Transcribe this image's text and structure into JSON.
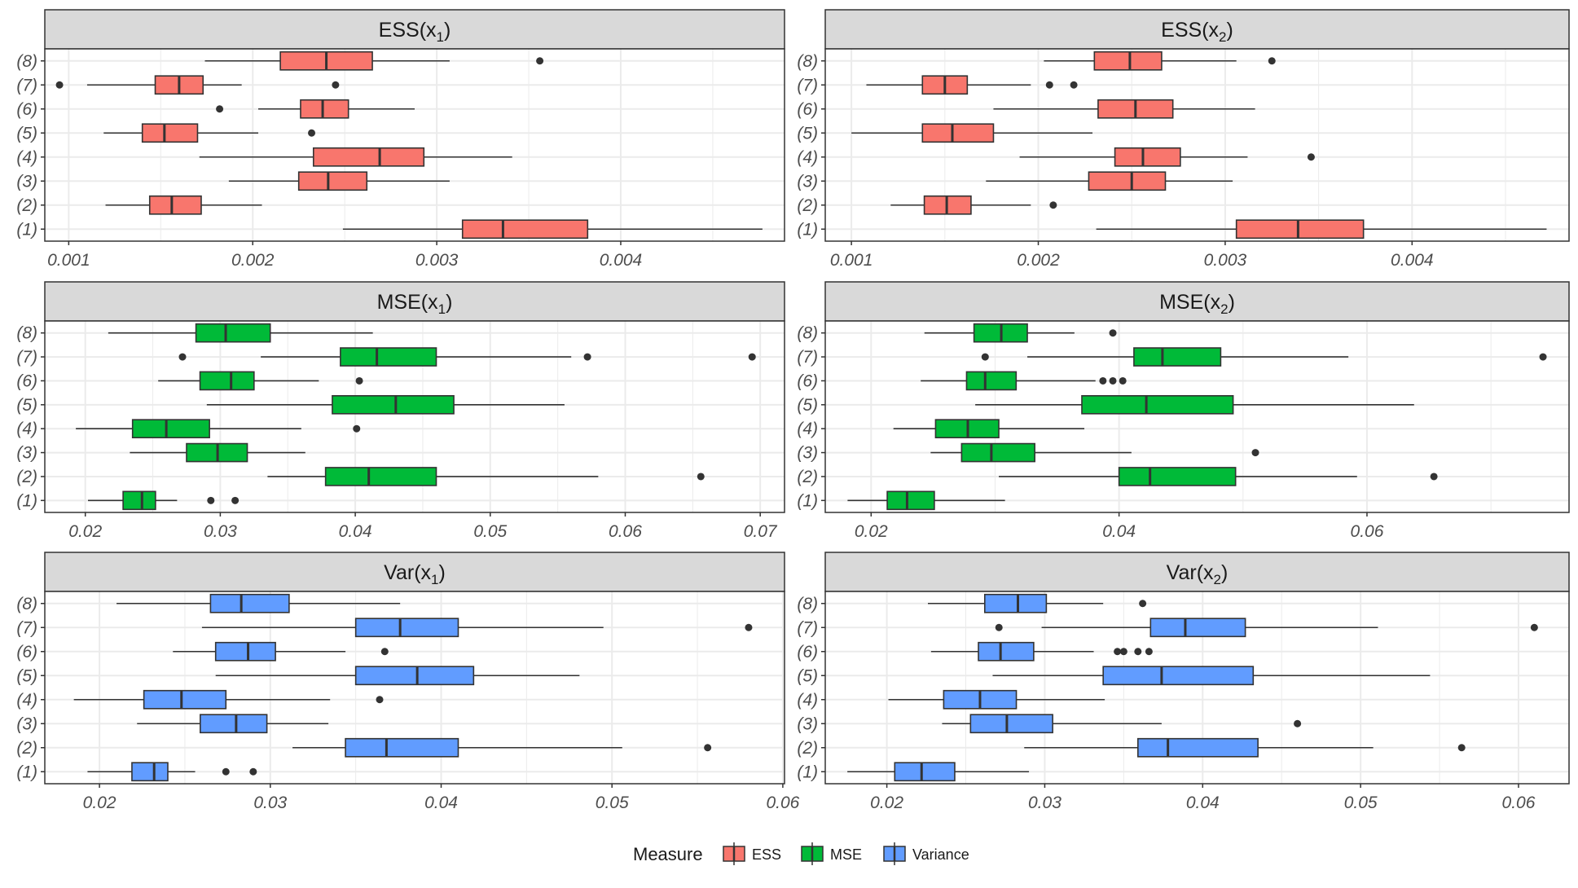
{
  "chart_data": [
    {
      "type": "boxplot",
      "panel": "ESS",
      "measure": "ESS",
      "title": "ESS(x1)",
      "title_parts": {
        "base": "ESS(x",
        "sub": "1",
        "close": ")"
      },
      "categories": [
        "(1)",
        "(2)",
        "(3)",
        "(4)",
        "(5)",
        "(6)",
        "(7)",
        "(8)"
      ],
      "x_ticks": [
        0.001,
        0.002,
        0.003,
        0.004
      ],
      "x_tick_labels": [
        "0.001",
        "0.002",
        "0.003",
        "0.004"
      ],
      "xlim": [
        0.00087,
        0.00489
      ],
      "boxes": [
        {
          "category": "(1)",
          "whisker_low": 0.00249,
          "q1": 0.00314,
          "median": 0.00336,
          "q3": 0.00382,
          "whisker_high": 0.00477,
          "outliers": []
        },
        {
          "category": "(2)",
          "whisker_low": 0.0012,
          "q1": 0.00144,
          "median": 0.00156,
          "q3": 0.00172,
          "whisker_high": 0.00205,
          "outliers": []
        },
        {
          "category": "(3)",
          "whisker_low": 0.00187,
          "q1": 0.00225,
          "median": 0.00241,
          "q3": 0.00262,
          "whisker_high": 0.00307,
          "outliers": []
        },
        {
          "category": "(4)",
          "whisker_low": 0.00171,
          "q1": 0.00233,
          "median": 0.00269,
          "q3": 0.00293,
          "whisker_high": 0.00341,
          "outliers": []
        },
        {
          "category": "(5)",
          "whisker_low": 0.00119,
          "q1": 0.0014,
          "median": 0.00152,
          "q3": 0.0017,
          "whisker_high": 0.00203,
          "outliers": [
            0.00232
          ]
        },
        {
          "category": "(6)",
          "whisker_low": 0.00203,
          "q1": 0.00226,
          "median": 0.00238,
          "q3": 0.00252,
          "whisker_high": 0.00288,
          "outliers": [
            0.00182
          ]
        },
        {
          "category": "(7)",
          "whisker_low": 0.0011,
          "q1": 0.00147,
          "median": 0.0016,
          "q3": 0.00173,
          "whisker_high": 0.00194,
          "outliers": [
            0.00095,
            0.00245
          ]
        },
        {
          "category": "(8)",
          "whisker_low": 0.00174,
          "q1": 0.00215,
          "median": 0.0024,
          "q3": 0.00265,
          "whisker_high": 0.00307,
          "outliers": [
            0.00356
          ]
        }
      ]
    },
    {
      "type": "boxplot",
      "panel": "ESS",
      "measure": "ESS",
      "title": "ESS(x2)",
      "title_parts": {
        "base": "ESS(x",
        "sub": "2",
        "close": ")"
      },
      "categories": [
        "(1)",
        "(2)",
        "(3)",
        "(4)",
        "(5)",
        "(6)",
        "(7)",
        "(8)"
      ],
      "x_ticks": [
        0.001,
        0.002,
        0.003,
        0.004
      ],
      "x_tick_labels": [
        "0.001",
        "0.002",
        "0.003",
        "0.004"
      ],
      "xlim": [
        0.00086,
        0.00484
      ],
      "boxes": [
        {
          "category": "(1)",
          "whisker_low": 0.00231,
          "q1": 0.00306,
          "median": 0.00339,
          "q3": 0.00374,
          "whisker_high": 0.00472,
          "outliers": []
        },
        {
          "category": "(2)",
          "whisker_low": 0.00121,
          "q1": 0.00139,
          "median": 0.00151,
          "q3": 0.00164,
          "whisker_high": 0.00196,
          "outliers": [
            0.00208
          ]
        },
        {
          "category": "(3)",
          "whisker_low": 0.00172,
          "q1": 0.00227,
          "median": 0.0025,
          "q3": 0.00268,
          "whisker_high": 0.00304,
          "outliers": []
        },
        {
          "category": "(4)",
          "whisker_low": 0.0019,
          "q1": 0.00241,
          "median": 0.00256,
          "q3": 0.00276,
          "whisker_high": 0.00312,
          "outliers": [
            0.00346
          ]
        },
        {
          "category": "(5)",
          "whisker_low": 0.001,
          "q1": 0.00138,
          "median": 0.00154,
          "q3": 0.00176,
          "whisker_high": 0.00229,
          "outliers": []
        },
        {
          "category": "(6)",
          "whisker_low": 0.00176,
          "q1": 0.00232,
          "median": 0.00252,
          "q3": 0.00272,
          "whisker_high": 0.00316,
          "outliers": []
        },
        {
          "category": "(7)",
          "whisker_low": 0.00108,
          "q1": 0.00138,
          "median": 0.0015,
          "q3": 0.00162,
          "whisker_high": 0.00196,
          "outliers": [
            0.00206,
            0.00219
          ]
        },
        {
          "category": "(8)",
          "whisker_low": 0.00203,
          "q1": 0.0023,
          "median": 0.00249,
          "q3": 0.00266,
          "whisker_high": 0.00306,
          "outliers": [
            0.00325
          ]
        }
      ]
    },
    {
      "type": "boxplot",
      "panel": "MSE",
      "measure": "MSE",
      "title": "MSE(x1)",
      "title_parts": {
        "base": "MSE(x",
        "sub": "1",
        "close": ")"
      },
      "categories": [
        "(1)",
        "(2)",
        "(3)",
        "(4)",
        "(5)",
        "(6)",
        "(7)",
        "(8)"
      ],
      "x_ticks": [
        0.02,
        0.03,
        0.04,
        0.05,
        0.06,
        0.07
      ],
      "x_tick_labels": [
        "0.02",
        "0.03",
        "0.04",
        "0.05",
        "0.06",
        "0.07"
      ],
      "xlim": [
        0.017,
        0.0718
      ],
      "boxes": [
        {
          "category": "(1)",
          "whisker_low": 0.0202,
          "q1": 0.0228,
          "median": 0.0242,
          "q3": 0.0252,
          "whisker_high": 0.0268,
          "outliers": [
            0.0293,
            0.0311
          ]
        },
        {
          "category": "(2)",
          "whisker_low": 0.0335,
          "q1": 0.0378,
          "median": 0.041,
          "q3": 0.046,
          "whisker_high": 0.058,
          "outliers": [
            0.0656
          ]
        },
        {
          "category": "(3)",
          "whisker_low": 0.0233,
          "q1": 0.0275,
          "median": 0.0298,
          "q3": 0.032,
          "whisker_high": 0.0363,
          "outliers": []
        },
        {
          "category": "(4)",
          "whisker_low": 0.0193,
          "q1": 0.0235,
          "median": 0.026,
          "q3": 0.0292,
          "whisker_high": 0.036,
          "outliers": [
            0.0401
          ]
        },
        {
          "category": "(5)",
          "whisker_low": 0.029,
          "q1": 0.0383,
          "median": 0.043,
          "q3": 0.0473,
          "whisker_high": 0.0555,
          "outliers": []
        },
        {
          "category": "(6)",
          "whisker_low": 0.0254,
          "q1": 0.0285,
          "median": 0.0308,
          "q3": 0.0325,
          "whisker_high": 0.0373,
          "outliers": [
            0.0403
          ]
        },
        {
          "category": "(7)",
          "whisker_low": 0.033,
          "q1": 0.0389,
          "median": 0.0416,
          "q3": 0.046,
          "whisker_high": 0.056,
          "outliers": [
            0.0272,
            0.0572,
            0.0694
          ]
        },
        {
          "category": "(8)",
          "whisker_low": 0.0217,
          "q1": 0.0282,
          "median": 0.0304,
          "q3": 0.0337,
          "whisker_high": 0.0413,
          "outliers": []
        }
      ]
    },
    {
      "type": "boxplot",
      "panel": "MSE",
      "measure": "MSE",
      "title": "MSE(x2)",
      "title_parts": {
        "base": "MSE(x",
        "sub": "2",
        "close": ")"
      },
      "categories": [
        "(1)",
        "(2)",
        "(3)",
        "(4)",
        "(5)",
        "(6)",
        "(7)",
        "(8)"
      ],
      "x_ticks": [
        0.02,
        0.04,
        0.06
      ],
      "x_tick_labels": [
        "0.02",
        "0.04",
        "0.06"
      ],
      "xlim": [
        0.0163,
        0.0763
      ],
      "boxes": [
        {
          "category": "(1)",
          "whisker_low": 0.0181,
          "q1": 0.0213,
          "median": 0.0229,
          "q3": 0.0251,
          "whisker_high": 0.0308,
          "outliers": []
        },
        {
          "category": "(2)",
          "whisker_low": 0.0303,
          "q1": 0.04,
          "median": 0.0425,
          "q3": 0.0494,
          "whisker_high": 0.0592,
          "outliers": [
            0.0654
          ]
        },
        {
          "category": "(3)",
          "whisker_low": 0.0248,
          "q1": 0.0273,
          "median": 0.0297,
          "q3": 0.0332,
          "whisker_high": 0.041,
          "outliers": [
            0.051
          ]
        },
        {
          "category": "(4)",
          "whisker_low": 0.0218,
          "q1": 0.0252,
          "median": 0.0278,
          "q3": 0.0303,
          "whisker_high": 0.0372,
          "outliers": []
        },
        {
          "category": "(5)",
          "whisker_low": 0.0284,
          "q1": 0.037,
          "median": 0.0422,
          "q3": 0.0492,
          "whisker_high": 0.0638,
          "outliers": []
        },
        {
          "category": "(6)",
          "whisker_low": 0.024,
          "q1": 0.0277,
          "median": 0.0292,
          "q3": 0.0317,
          "whisker_high": 0.0381,
          "outliers": [
            0.0387,
            0.0395,
            0.0403
          ]
        },
        {
          "category": "(7)",
          "whisker_low": 0.0326,
          "q1": 0.0412,
          "median": 0.0435,
          "q3": 0.0482,
          "whisker_high": 0.0585,
          "outliers": [
            0.0292,
            0.0742
          ]
        },
        {
          "category": "(8)",
          "whisker_low": 0.0243,
          "q1": 0.0283,
          "median": 0.0305,
          "q3": 0.0326,
          "whisker_high": 0.0364,
          "outliers": [
            0.0395
          ]
        }
      ]
    },
    {
      "type": "boxplot",
      "panel": "Var",
      "measure": "Variance",
      "title": "Var(x1)",
      "title_parts": {
        "base": "Var(x",
        "sub": "1",
        "close": ")"
      },
      "categories": [
        "(1)",
        "(2)",
        "(3)",
        "(4)",
        "(5)",
        "(6)",
        "(7)",
        "(8)"
      ],
      "x_ticks": [
        0.02,
        0.03,
        0.04,
        0.05,
        0.06
      ],
      "x_tick_labels": [
        "0.02",
        "0.03",
        "0.04",
        "0.05",
        "0.06"
      ],
      "xlim": [
        0.0168,
        0.0601
      ],
      "boxes": [
        {
          "category": "(1)",
          "whisker_low": 0.0193,
          "q1": 0.0219,
          "median": 0.0232,
          "q3": 0.024,
          "whisker_high": 0.0256,
          "outliers": [
            0.0274,
            0.029
          ]
        },
        {
          "category": "(2)",
          "whisker_low": 0.0313,
          "q1": 0.0344,
          "median": 0.0368,
          "q3": 0.041,
          "whisker_high": 0.0506,
          "outliers": [
            0.0556
          ]
        },
        {
          "category": "(3)",
          "whisker_low": 0.0222,
          "q1": 0.0259,
          "median": 0.028,
          "q3": 0.0298,
          "whisker_high": 0.0334,
          "outliers": []
        },
        {
          "category": "(4)",
          "whisker_low": 0.0185,
          "q1": 0.0226,
          "median": 0.0248,
          "q3": 0.0274,
          "whisker_high": 0.0335,
          "outliers": [
            0.0364
          ]
        },
        {
          "category": "(5)",
          "whisker_low": 0.0268,
          "q1": 0.035,
          "median": 0.0386,
          "q3": 0.0419,
          "whisker_high": 0.0481,
          "outliers": []
        },
        {
          "category": "(6)",
          "whisker_low": 0.0243,
          "q1": 0.0268,
          "median": 0.0287,
          "q3": 0.0303,
          "whisker_high": 0.0344,
          "outliers": [
            0.0367
          ]
        },
        {
          "category": "(7)",
          "whisker_low": 0.026,
          "q1": 0.035,
          "median": 0.0376,
          "q3": 0.041,
          "whisker_high": 0.0495,
          "outliers": [
            0.058
          ]
        },
        {
          "category": "(8)",
          "whisker_low": 0.021,
          "q1": 0.0265,
          "median": 0.0283,
          "q3": 0.0311,
          "whisker_high": 0.0376,
          "outliers": []
        }
      ]
    },
    {
      "type": "boxplot",
      "panel": "Var",
      "measure": "Variance",
      "title": "Var(x2)",
      "title_parts": {
        "base": "Var(x",
        "sub": "2",
        "close": ")"
      },
      "categories": [
        "(1)",
        "(2)",
        "(3)",
        "(4)",
        "(5)",
        "(6)",
        "(7)",
        "(8)"
      ],
      "x_ticks": [
        0.02,
        0.03,
        0.04,
        0.05,
        0.06
      ],
      "x_tick_labels": [
        "0.02",
        "0.03",
        "0.04",
        "0.05",
        "0.06"
      ],
      "xlim": [
        0.0161,
        0.0632
      ],
      "boxes": [
        {
          "category": "(1)",
          "whisker_low": 0.0175,
          "q1": 0.0205,
          "median": 0.0222,
          "q3": 0.0243,
          "whisker_high": 0.029,
          "outliers": []
        },
        {
          "category": "(2)",
          "whisker_low": 0.0287,
          "q1": 0.0359,
          "median": 0.0378,
          "q3": 0.0435,
          "whisker_high": 0.0508,
          "outliers": [
            0.0564
          ]
        },
        {
          "category": "(3)",
          "whisker_low": 0.0235,
          "q1": 0.0253,
          "median": 0.0276,
          "q3": 0.0305,
          "whisker_high": 0.0374,
          "outliers": [
            0.046
          ]
        },
        {
          "category": "(4)",
          "whisker_low": 0.0201,
          "q1": 0.0236,
          "median": 0.0259,
          "q3": 0.0282,
          "whisker_high": 0.0338,
          "outliers": []
        },
        {
          "category": "(5)",
          "whisker_low": 0.0267,
          "q1": 0.0337,
          "median": 0.0374,
          "q3": 0.0432,
          "whisker_high": 0.0544,
          "outliers": []
        },
        {
          "category": "(6)",
          "whisker_low": 0.0228,
          "q1": 0.0258,
          "median": 0.0272,
          "q3": 0.0293,
          "whisker_high": 0.0331,
          "outliers": [
            0.0346,
            0.035,
            0.0359,
            0.0366
          ]
        },
        {
          "category": "(7)",
          "whisker_low": 0.0298,
          "q1": 0.0367,
          "median": 0.0389,
          "q3": 0.0427,
          "whisker_high": 0.0511,
          "outliers": [
            0.0271,
            0.061
          ]
        },
        {
          "category": "(8)",
          "whisker_low": 0.0226,
          "q1": 0.0262,
          "median": 0.0283,
          "q3": 0.0301,
          "whisker_high": 0.0337,
          "outliers": [
            0.0362
          ]
        }
      ]
    }
  ],
  "legend": {
    "title": "Measure",
    "position": "bottom",
    "items": [
      {
        "label": "ESS",
        "measure": "ESS",
        "color": "#F8766D"
      },
      {
        "label": "MSE",
        "measure": "MSE",
        "color": "#00BA38"
      },
      {
        "label": "Variance",
        "measure": "Variance",
        "color": "#619CFF"
      }
    ]
  },
  "colors": {
    "ESS": "#F8766D",
    "MSE": "#00BA38",
    "Variance": "#619CFF",
    "strip_fill": "#D9D9D9",
    "panel_border": "#333333",
    "grid": "#EBEBEB",
    "box_outline": "#333333",
    "outlier": "#333333"
  },
  "grid": true,
  "facet_layout": "3 rows x 2 columns"
}
